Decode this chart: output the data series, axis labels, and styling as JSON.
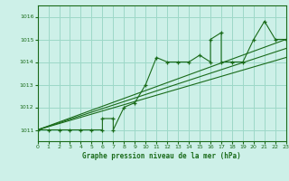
{
  "title": "Graphe pression niveau de la mer (hPa)",
  "background_color": "#cdf0e8",
  "grid_color": "#9dd8c8",
  "line_color": "#1a6b1a",
  "x_min": 0,
  "x_max": 23,
  "y_min": 1010.5,
  "y_max": 1016.5,
  "y_ticks": [
    1011,
    1012,
    1013,
    1014,
    1015,
    1016
  ],
  "x_ticks": [
    0,
    1,
    2,
    3,
    4,
    5,
    6,
    7,
    8,
    9,
    10,
    11,
    12,
    13,
    14,
    15,
    16,
    17,
    18,
    19,
    20,
    21,
    22,
    23
  ],
  "main_data_x": [
    0,
    1,
    2,
    3,
    4,
    5,
    6,
    6,
    7,
    7,
    8,
    9,
    10,
    11,
    12,
    13,
    14,
    15,
    16,
    16,
    17,
    17,
    18,
    19,
    20,
    21,
    22,
    23
  ],
  "main_data_y": [
    1011,
    1011,
    1011,
    1011,
    1011,
    1011,
    1011,
    1011.5,
    1011.5,
    1011,
    1012,
    1012.2,
    1013,
    1014.2,
    1014,
    1014,
    1014,
    1014.3,
    1014,
    1015,
    1015.3,
    1014,
    1014,
    1014,
    1015,
    1015.8,
    1015,
    1015
  ],
  "trend1_x": [
    0,
    23
  ],
  "trend1_y": [
    1011,
    1015.0
  ],
  "trend2_x": [
    0,
    23
  ],
  "trend2_y": [
    1011,
    1014.2
  ],
  "trend3_x": [
    0,
    23
  ],
  "trend3_y": [
    1011,
    1014.6
  ]
}
